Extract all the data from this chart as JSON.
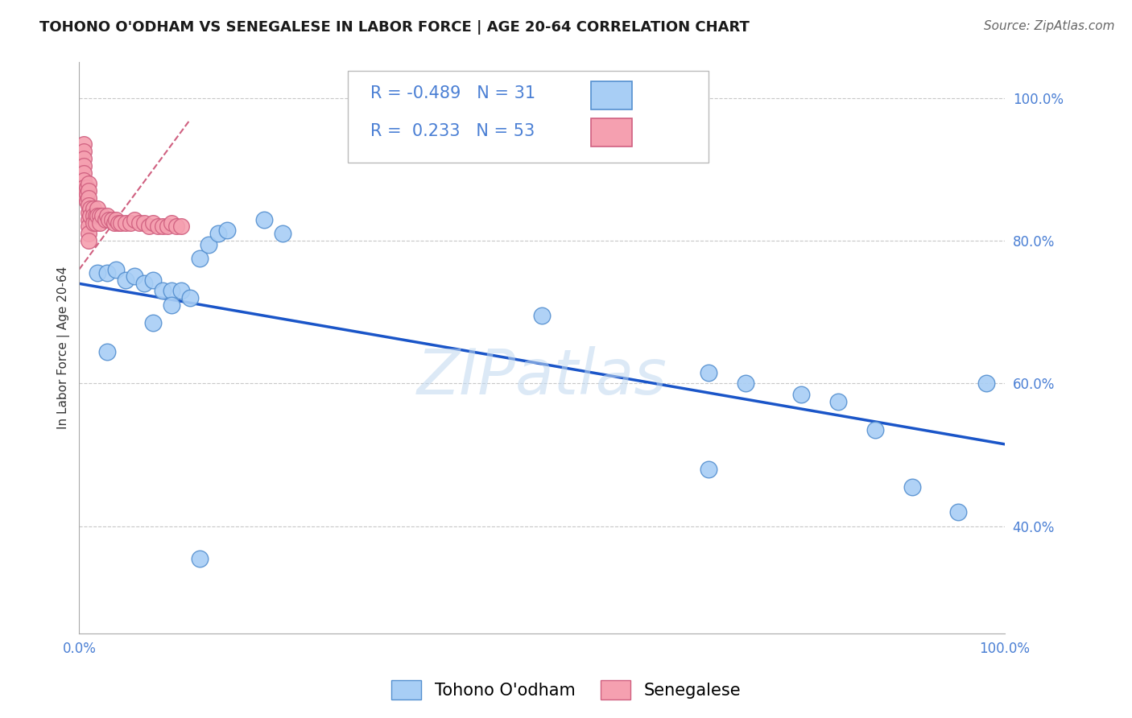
{
  "title": "TOHONO O'ODHAM VS SENEGALESE IN LABOR FORCE | AGE 20-64 CORRELATION CHART",
  "source": "Source: ZipAtlas.com",
  "ylabel": "In Labor Force | Age 20-64",
  "xlim": [
    0,
    1
  ],
  "ylim": [
    0.25,
    1.05
  ],
  "watermark": "ZIPatlas",
  "blue_R": "-0.489",
  "blue_N": "31",
  "pink_R": "0.233",
  "pink_N": "53",
  "blue_scatter_x": [
    0.02,
    0.03,
    0.04,
    0.05,
    0.06,
    0.07,
    0.08,
    0.09,
    0.1,
    0.11,
    0.12,
    0.13,
    0.14,
    0.15,
    0.16,
    0.2,
    0.22,
    0.5,
    0.68,
    0.72,
    0.78,
    0.82,
    0.86,
    0.9,
    0.95,
    0.98,
    0.03,
    0.08,
    0.1,
    0.68,
    0.13
  ],
  "blue_scatter_y": [
    0.755,
    0.755,
    0.76,
    0.745,
    0.75,
    0.74,
    0.745,
    0.73,
    0.73,
    0.73,
    0.72,
    0.775,
    0.795,
    0.81,
    0.815,
    0.83,
    0.81,
    0.695,
    0.615,
    0.6,
    0.585,
    0.575,
    0.535,
    0.455,
    0.42,
    0.6,
    0.645,
    0.685,
    0.71,
    0.48,
    0.355
  ],
  "pink_scatter_x": [
    0.005,
    0.005,
    0.005,
    0.005,
    0.005,
    0.005,
    0.005,
    0.005,
    0.008,
    0.008,
    0.008,
    0.01,
    0.01,
    0.01,
    0.01,
    0.01,
    0.01,
    0.01,
    0.01,
    0.01,
    0.012,
    0.012,
    0.015,
    0.015,
    0.015,
    0.018,
    0.018,
    0.02,
    0.02,
    0.022,
    0.022,
    0.025,
    0.028,
    0.03,
    0.032,
    0.035,
    0.038,
    0.04,
    0.042,
    0.045,
    0.05,
    0.055,
    0.06,
    0.065,
    0.07,
    0.075,
    0.08,
    0.085,
    0.09,
    0.095,
    0.1,
    0.105,
    0.11
  ],
  "pink_scatter_y": [
    0.935,
    0.925,
    0.915,
    0.905,
    0.895,
    0.885,
    0.875,
    0.865,
    0.875,
    0.865,
    0.855,
    0.88,
    0.87,
    0.86,
    0.85,
    0.84,
    0.83,
    0.82,
    0.81,
    0.8,
    0.845,
    0.835,
    0.845,
    0.835,
    0.825,
    0.835,
    0.825,
    0.845,
    0.835,
    0.835,
    0.825,
    0.835,
    0.83,
    0.835,
    0.83,
    0.83,
    0.825,
    0.83,
    0.825,
    0.825,
    0.825,
    0.825,
    0.83,
    0.825,
    0.825,
    0.82,
    0.825,
    0.82,
    0.82,
    0.82,
    0.825,
    0.82,
    0.82
  ],
  "blue_line_x": [
    0.0,
    1.0
  ],
  "blue_line_y": [
    0.74,
    0.515
  ],
  "pink_dashed_line_x": [
    0.0,
    0.12
  ],
  "pink_dashed_line_y": [
    0.76,
    0.97
  ],
  "blue_color": "#a8cef5",
  "blue_edge_color": "#5590d0",
  "blue_line_color": "#1a55c8",
  "pink_color": "#f5a0b0",
  "pink_edge_color": "#d06080",
  "pink_line_color": "#d06080",
  "grid_color": "#c8c8c8",
  "background_color": "#ffffff",
  "title_fontsize": 13,
  "axis_label_fontsize": 11,
  "tick_fontsize": 12,
  "legend_fontsize": 15,
  "source_fontsize": 11
}
